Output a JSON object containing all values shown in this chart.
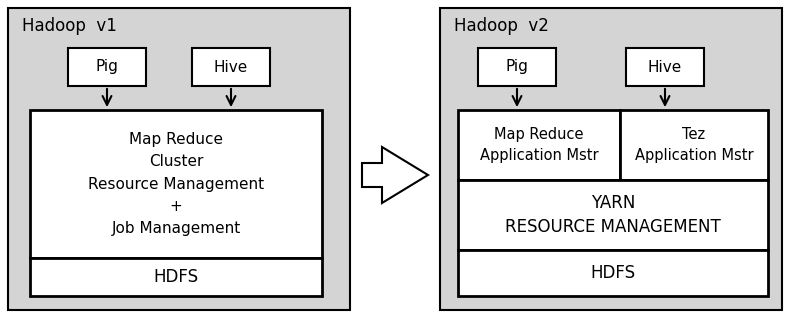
{
  "bg_color": "#d4d4d4",
  "box_color": "#ffffff",
  "box_edge": "#000000",
  "title_v1": "Hadoop  v1",
  "title_v2": "Hadoop  v2",
  "pig_label": "Pig",
  "hive_label": "Hive",
  "v1_main_text": "Map Reduce\nCluster\nResource Management\n+\nJob Management",
  "v1_hdfs_text": "HDFS",
  "v2_mr_text": "Map Reduce\nApplication Mstr",
  "v2_tez_text": "Tez\nApplication Mstr",
  "v2_yarn_text": "YARN\nRESOURCE MANAGEMENT",
  "v2_hdfs_text": "HDFS",
  "fig_width": 7.89,
  "fig_height": 3.18,
  "dpi": 100
}
